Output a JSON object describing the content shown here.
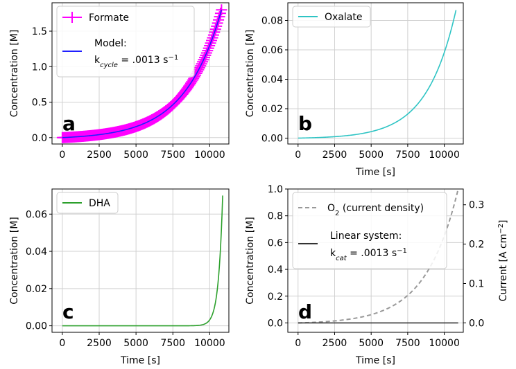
{
  "chart_data": [
    {
      "id": "a",
      "type": "line",
      "panel_label": "a",
      "xlabel": "",
      "ylabel": "Concentration [M]",
      "xlim": [
        -700,
        11300
      ],
      "ylim": [
        -0.09,
        1.9
      ],
      "xticks": [
        0,
        2500,
        5000,
        7500,
        10000
      ],
      "xtick_labels": [
        "0",
        "2500",
        "5000",
        "7500",
        "10000"
      ],
      "yticks": [
        0.0,
        0.5,
        1.0,
        1.5
      ],
      "ytick_labels": [
        "0.0",
        "0.5",
        "1.0",
        "1.5"
      ],
      "grid": true,
      "legend_position": "top-left",
      "series": [
        {
          "name": "Formate",
          "color": "#ff00ff",
          "style": "plus-markers",
          "x": [
            0,
            10800
          ],
          "y": [
            0,
            1.8
          ],
          "curve": "exp",
          "k": 0.0004
        },
        {
          "name_line1": "Model:",
          "name_line2_base": "k",
          "name_line2_sub": "cycle",
          "name_line2_rest": " = .0013 s",
          "name_line2_sup": "−1",
          "color": "#2020ff",
          "style": "line",
          "x": [
            0,
            10800
          ],
          "y": [
            0,
            1.8
          ],
          "curve": "exp",
          "k": 0.0004
        }
      ]
    },
    {
      "id": "b",
      "type": "line",
      "panel_label": "b",
      "xlabel": "Time [s]",
      "ylabel": "Concentration [M]",
      "xlim": [
        -700,
        11300
      ],
      "ylim": [
        -0.004,
        0.092
      ],
      "xticks": [
        0,
        2500,
        5000,
        7500,
        10000
      ],
      "xtick_labels": [
        "0",
        "2500",
        "5000",
        "7500",
        "10000"
      ],
      "yticks": [
        0.0,
        0.02,
        0.04,
        0.06,
        0.08
      ],
      "ytick_labels": [
        "0.00",
        "0.02",
        "0.04",
        "0.06",
        "0.08"
      ],
      "grid": true,
      "legend_position": "top-left",
      "series": [
        {
          "name": "Oxalate",
          "color": "#2ec4c4",
          "style": "line",
          "x": [
            0,
            10800
          ],
          "y": [
            0,
            0.087
          ],
          "curve": "exp",
          "k": 0.0005
        }
      ]
    },
    {
      "id": "c",
      "type": "line",
      "panel_label": "c",
      "xlabel": "Time [s]",
      "ylabel": "Concentration [M]",
      "xlim": [
        -700,
        11300
      ],
      "ylim": [
        -0.0035,
        0.0735
      ],
      "xticks": [
        0,
        2500,
        5000,
        7500,
        10000
      ],
      "xtick_labels": [
        "0",
        "2500",
        "5000",
        "7500",
        "10000"
      ],
      "yticks": [
        0.0,
        0.02,
        0.04,
        0.06
      ],
      "ytick_labels": [
        "0.00",
        "0.02",
        "0.04",
        "0.06"
      ],
      "grid": true,
      "legend_position": "top-left",
      "series": [
        {
          "name": "DHA",
          "color": "#2ca02c",
          "style": "line",
          "x": [
            0,
            10880
          ],
          "y": [
            0,
            0.07
          ],
          "curve": "steep",
          "k": 0.0035
        }
      ]
    },
    {
      "id": "d",
      "type": "line",
      "panel_label": "d",
      "xlabel": "Time [s]",
      "ylabel": "Concentration [M]",
      "ylabel_right": "Current [A cm",
      "ylabel_right_sup": "−2",
      "ylabel_right_close": "]",
      "xlim": [
        -700,
        11300
      ],
      "ylim": [
        -0.07,
        1.0
      ],
      "xticks": [
        0,
        2500,
        5000,
        7500,
        10000
      ],
      "xtick_labels": [
        "0",
        "2500",
        "5000",
        "7500",
        "10000"
      ],
      "yticks": [
        0.0,
        0.2,
        0.4,
        0.6,
        0.8,
        1.0
      ],
      "ytick_labels": [
        "0.0",
        "0.2",
        "0.4",
        "0.6",
        "0.8",
        "1.0"
      ],
      "ylim_right": [
        -0.024,
        0.34
      ],
      "yticks_right": [
        0.0,
        0.1,
        0.2,
        0.3
      ],
      "ytick_labels_right": [
        "0.0",
        "0.1",
        "0.2",
        "0.3"
      ],
      "grid": true,
      "legend_position": "top-left",
      "series": [
        {
          "name_base": "O",
          "name_sub": "2",
          "name_rest": " (current density)",
          "color": "#999999",
          "style": "dashed",
          "axis": "left",
          "x": [
            0,
            10950
          ],
          "y": [
            0,
            1.0
          ],
          "curve": "exp",
          "k": 0.00045
        },
        {
          "name_line1": "Linear system:",
          "name_line2_base": "k",
          "name_line2_sub": "cat",
          "name_line2_rest": " = .0013 s",
          "name_line2_sup": "−1",
          "color": "#333333",
          "style": "line",
          "axis": "left",
          "x": [
            0,
            10950
          ],
          "y": [
            0,
            0
          ],
          "curve": "flat",
          "k": 0
        }
      ]
    }
  ]
}
